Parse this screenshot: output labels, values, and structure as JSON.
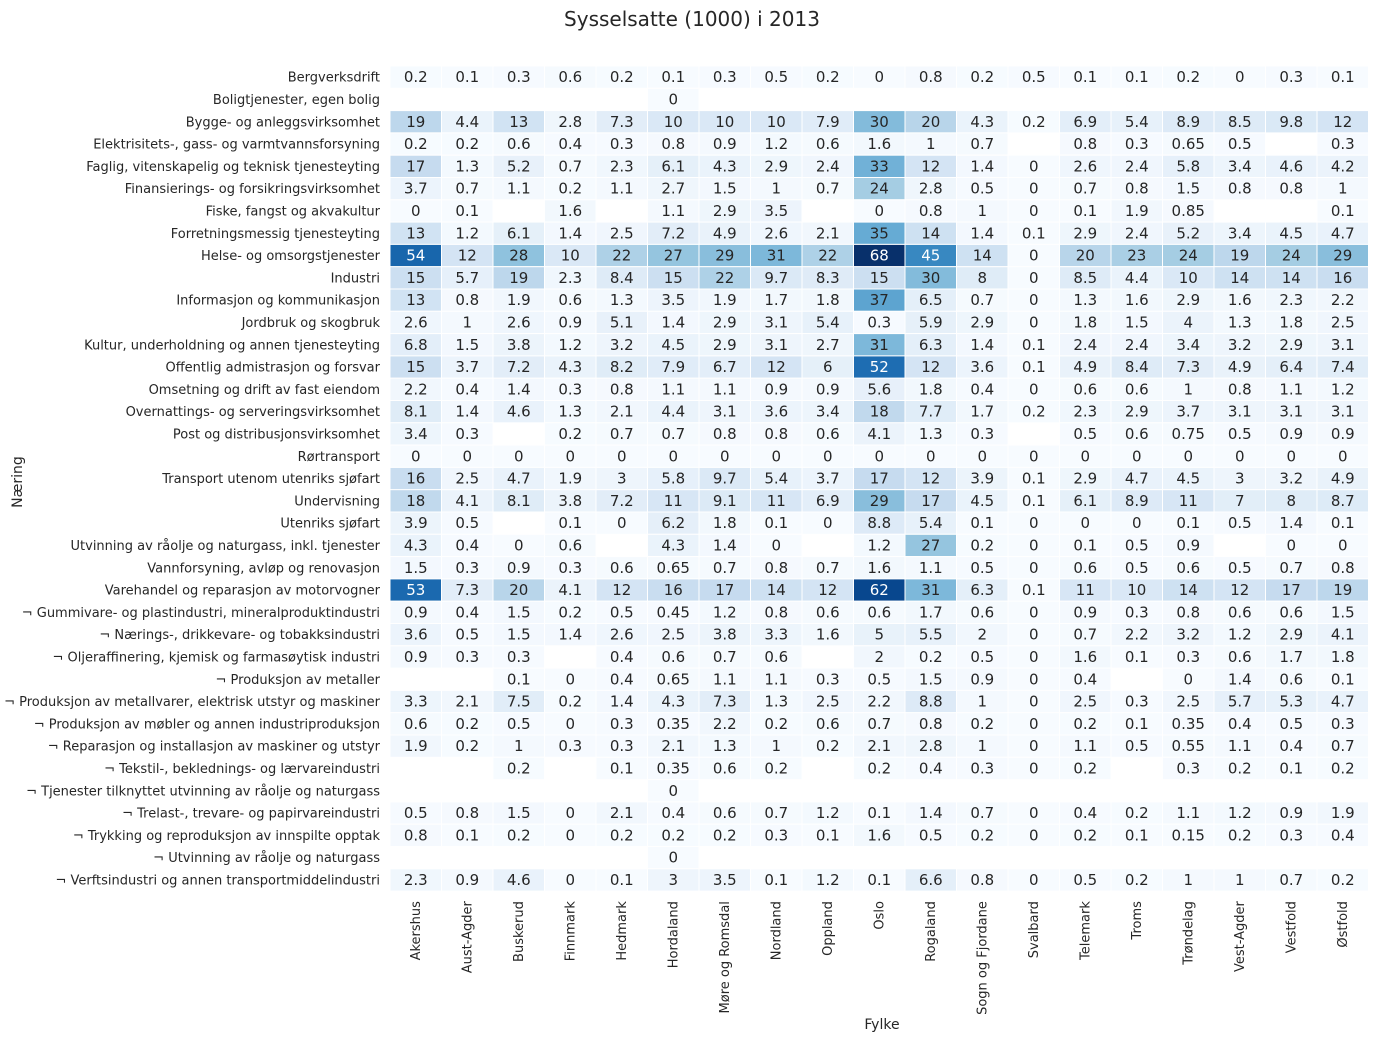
{
  "chart_data": {
    "type": "heatmap",
    "title": "Sysselsatte (1000) i 2013",
    "xlabel": "Fylke",
    "ylabel": "Næring",
    "colormap": "Blues",
    "vmin": 0,
    "vmax": 68,
    "columns": [
      "Akershus",
      "Aust-Agder",
      "Buskerud",
      "Finnmark",
      "Hedmark",
      "Hordaland",
      "Møre og Romsdal",
      "Nordland",
      "Oppland",
      "Oslo",
      "Rogaland",
      "Sogn og Fjordane",
      "Svalbard",
      "Telemark",
      "Troms",
      "Trøndelag",
      "Vest-Agder",
      "Vestfold",
      "Østfold"
    ],
    "rows": [
      "Bergverksdrift",
      "Boligtjenester, egen bolig",
      "Bygge- og anleggsvirksomhet",
      "Elektrisitets-, gass- og varmtvannsforsyning",
      "Faglig, vitenskapelig og teknisk tjenesteyting",
      "Finansierings- og forsikringsvirksomhet",
      "Fiske, fangst og akvakultur",
      "Forretningsmessig tjenesteyting",
      "Helse- og omsorgstjenester",
      "Industri",
      "Informasjon og kommunikasjon",
      "Jordbruk og skogbruk",
      "Kultur, underholdning og annen tjenesteyting",
      "Offentlig admistrasjon og forsvar",
      "Omsetning og drift av fast eiendom",
      "Overnattings- og serveringsvirksomhet",
      "Post og distribusjonsvirksomhet",
      "Rørtransport",
      "Transport utenom utenriks sjøfart",
      "Undervisning",
      "Utenriks sjøfart",
      "Utvinning av råolje og naturgass, inkl. tjenester",
      "Vannforsyning, avløp og renovasjon",
      "Varehandel og reparasjon av motorvogner",
      "¬ Gummivare- og plastindustri, mineralproduktindustri",
      "¬ Nærings-, drikkevare- og tobakksindustri",
      "¬ Oljeraffinering, kjemisk og farmasøytisk industri",
      "¬ Produksjon av metaller",
      "¬ Produksjon av metallvarer, elektrisk utstyr og maskiner",
      "¬ Produksjon av møbler og annen industriproduksjon",
      "¬ Reparasjon og installasjon av maskiner og utstyr",
      "¬ Tekstil-, beklednings- og lærvareindustri",
      "¬ Tjenester tilknyttet utvinning av råolje og naturgass",
      "¬ Trelast-, trevare- og papirvareindustri",
      "¬ Trykking og reproduksjon av innspilte opptak",
      "¬ Utvinning av råolje og naturgass",
      "¬ Verftsindustri og annen transportmiddelindustri"
    ],
    "values": [
      [
        0.2,
        0.1,
        0.3,
        0.6,
        0.2,
        0.1,
        0.3,
        0.5,
        0.2,
        0,
        0.8,
        0.2,
        0.5,
        0.1,
        0.1,
        0.2,
        0,
        0.3,
        0.1
      ],
      [
        null,
        null,
        null,
        null,
        null,
        0,
        null,
        null,
        null,
        null,
        null,
        null,
        null,
        null,
        null,
        null,
        null,
        null,
        null
      ],
      [
        19,
        4.4,
        13,
        2.8,
        7.3,
        10,
        10,
        10,
        7.9,
        30,
        20,
        4.3,
        0.2,
        6.9,
        5.4,
        8.9,
        8.5,
        9.8,
        12
      ],
      [
        0.2,
        0.2,
        0.6,
        0.4,
        0.3,
        0.8,
        0.9,
        1.2,
        0.6,
        1.6,
        1,
        0.7,
        null,
        0.8,
        0.3,
        0.65,
        0.5,
        null,
        0.3
      ],
      [
        17,
        1.3,
        5.2,
        0.7,
        2.3,
        6.1,
        4.3,
        2.9,
        2.4,
        33,
        12,
        1.4,
        0,
        2.6,
        2.4,
        5.8,
        3.4,
        4.6,
        4.2
      ],
      [
        3.7,
        0.7,
        1.1,
        0.2,
        1.1,
        2.7,
        1.5,
        1,
        0.7,
        24,
        2.8,
        0.5,
        0,
        0.7,
        0.8,
        1.5,
        0.8,
        0.8,
        1
      ],
      [
        0,
        0.1,
        null,
        1.6,
        null,
        1.1,
        2.9,
        3.5,
        null,
        0,
        0.8,
        1,
        0,
        0.1,
        1.9,
        0.85,
        null,
        null,
        0.1
      ],
      [
        13,
        1.2,
        6.1,
        1.4,
        2.5,
        7.2,
        4.9,
        2.6,
        2.1,
        35,
        14,
        1.4,
        0.1,
        2.9,
        2.4,
        5.2,
        3.4,
        4.5,
        4.7
      ],
      [
        54,
        12,
        28,
        10,
        22,
        27,
        29,
        31,
        22,
        68,
        45,
        14,
        0,
        20,
        23,
        24,
        19,
        24,
        29
      ],
      [
        15,
        5.7,
        19,
        2.3,
        8.4,
        15,
        22,
        9.7,
        8.3,
        15,
        30,
        8,
        0,
        8.5,
        4.4,
        10,
        14,
        14,
        16
      ],
      [
        13,
        0.8,
        1.9,
        0.6,
        1.3,
        3.5,
        1.9,
        1.7,
        1.8,
        37,
        6.5,
        0.7,
        0,
        1.3,
        1.6,
        2.9,
        1.6,
        2.3,
        2.2
      ],
      [
        2.6,
        1,
        2.6,
        0.9,
        5.1,
        1.4,
        2.9,
        3.1,
        5.4,
        0.3,
        5.9,
        2.9,
        0,
        1.8,
        1.5,
        4,
        1.3,
        1.8,
        2.5
      ],
      [
        6.8,
        1.5,
        3.8,
        1.2,
        3.2,
        4.5,
        2.9,
        3.1,
        2.7,
        31,
        6.3,
        1.4,
        0.1,
        2.4,
        2.4,
        3.4,
        3.2,
        2.9,
        3.1
      ],
      [
        15,
        3.7,
        7.2,
        4.3,
        8.2,
        7.9,
        6.7,
        12,
        6,
        52,
        12,
        3.6,
        0.1,
        4.9,
        8.4,
        7.3,
        4.9,
        6.4,
        7.4
      ],
      [
        2.2,
        0.4,
        1.4,
        0.3,
        0.8,
        1.1,
        1.1,
        0.9,
        0.9,
        5.6,
        1.8,
        0.4,
        0,
        0.6,
        0.6,
        1,
        0.8,
        1.1,
        1.2
      ],
      [
        8.1,
        1.4,
        4.6,
        1.3,
        2.1,
        4.4,
        3.1,
        3.6,
        3.4,
        18,
        7.7,
        1.7,
        0.2,
        2.3,
        2.9,
        3.7,
        3.1,
        3.1,
        3.1
      ],
      [
        3.4,
        0.3,
        null,
        0.2,
        0.7,
        0.7,
        0.8,
        0.8,
        0.6,
        4.1,
        1.3,
        0.3,
        null,
        0.5,
        0.6,
        0.75,
        0.5,
        0.9,
        0.9
      ],
      [
        0,
        0,
        0,
        0,
        0,
        0,
        0,
        0,
        0,
        0,
        0,
        0,
        0,
        0,
        0,
        0,
        0,
        0,
        0
      ],
      [
        16,
        2.5,
        4.7,
        1.9,
        3,
        5.8,
        9.7,
        5.4,
        3.7,
        17,
        12,
        3.9,
        0.1,
        2.9,
        4.7,
        4.5,
        3,
        3.2,
        4.9
      ],
      [
        18,
        4.1,
        8.1,
        3.8,
        7.2,
        11,
        9.1,
        11,
        6.9,
        29,
        17,
        4.5,
        0.1,
        6.1,
        8.9,
        11,
        7,
        8,
        8.7
      ],
      [
        3.9,
        0.5,
        null,
        0.1,
        0,
        6.2,
        1.8,
        0.1,
        0,
        8.8,
        5.4,
        0.1,
        0,
        0,
        0,
        0.1,
        0.5,
        1.4,
        0.1
      ],
      [
        4.3,
        0.4,
        0,
        0.6,
        null,
        4.3,
        1.4,
        0,
        null,
        1.2,
        27,
        0.2,
        0,
        0.1,
        0.5,
        0.9,
        null,
        0,
        0
      ],
      [
        1.5,
        0.3,
        0.9,
        0.3,
        0.6,
        0.65,
        0.7,
        0.8,
        0.7,
        1.6,
        1.1,
        0.5,
        0,
        0.6,
        0.5,
        0.6,
        0.5,
        0.7,
        0.8
      ],
      [
        53,
        7.3,
        20,
        4.1,
        12,
        16,
        17,
        14,
        12,
        62,
        31,
        6.3,
        0.1,
        11,
        10,
        14,
        12,
        17,
        19
      ],
      [
        0.9,
        0.4,
        1.5,
        0.2,
        0.5,
        0.45,
        1.2,
        0.8,
        0.6,
        0.6,
        1.7,
        0.6,
        0,
        0.9,
        0.3,
        0.8,
        0.6,
        0.6,
        1.5
      ],
      [
        3.6,
        0.5,
        1.5,
        1.4,
        2.6,
        2.5,
        3.8,
        3.3,
        1.6,
        5,
        5.5,
        2,
        0,
        0.7,
        2.2,
        3.2,
        1.2,
        2.9,
        4.1
      ],
      [
        0.9,
        0.3,
        0.3,
        null,
        0.4,
        0.6,
        0.7,
        0.6,
        null,
        2,
        0.2,
        0.5,
        0,
        1.6,
        0.1,
        0.3,
        0.6,
        1.7,
        1.8
      ],
      [
        null,
        null,
        0.1,
        0,
        0.4,
        0.65,
        1.1,
        1.1,
        0.3,
        0.5,
        1.5,
        0.9,
        0,
        0.4,
        null,
        0,
        1.4,
        0.6,
        0.1
      ],
      [
        3.3,
        2.1,
        7.5,
        0.2,
        1.4,
        4.3,
        7.3,
        1.3,
        2.5,
        2.2,
        8.8,
        1,
        0,
        2.5,
        0.3,
        2.5,
        5.7,
        5.3,
        4.7
      ],
      [
        0.6,
        0.2,
        0.5,
        0,
        0.3,
        0.35,
        2.2,
        0.2,
        0.6,
        0.7,
        0.8,
        0.2,
        0,
        0.2,
        0.1,
        0.35,
        0.4,
        0.5,
        0.3
      ],
      [
        1.9,
        0.2,
        1,
        0.3,
        0.3,
        2.1,
        1.3,
        1,
        0.2,
        2.1,
        2.8,
        1,
        0,
        1.1,
        0.5,
        0.55,
        1.1,
        0.4,
        0.7
      ],
      [
        null,
        null,
        0.2,
        null,
        0.1,
        0.35,
        0.6,
        0.2,
        null,
        0.2,
        0.4,
        0.3,
        0,
        0.2,
        null,
        0.3,
        0.2,
        0.1,
        0.2
      ],
      [
        null,
        null,
        null,
        null,
        null,
        0,
        null,
        null,
        null,
        null,
        null,
        null,
        null,
        null,
        null,
        null,
        null,
        null,
        null
      ],
      [
        0.5,
        0.8,
        1.5,
        0,
        2.1,
        0.4,
        0.6,
        0.7,
        1.2,
        0.1,
        1.4,
        0.7,
        0,
        0.4,
        0.2,
        1.1,
        1.2,
        0.9,
        1.9
      ],
      [
        0.8,
        0.1,
        0.2,
        0,
        0.2,
        0.2,
        0.2,
        0.3,
        0.1,
        1.6,
        0.5,
        0.2,
        0,
        0.2,
        0.1,
        0.15,
        0.2,
        0.3,
        0.4
      ],
      [
        null,
        null,
        null,
        null,
        null,
        0,
        null,
        null,
        null,
        null,
        null,
        null,
        null,
        null,
        null,
        null,
        null,
        null,
        null
      ],
      [
        2.3,
        0.9,
        4.6,
        0,
        0.1,
        3,
        3.5,
        0.1,
        1.2,
        0.1,
        6.6,
        0.8,
        0,
        0.5,
        0.2,
        1,
        1,
        0.7,
        0.2
      ]
    ]
  }
}
